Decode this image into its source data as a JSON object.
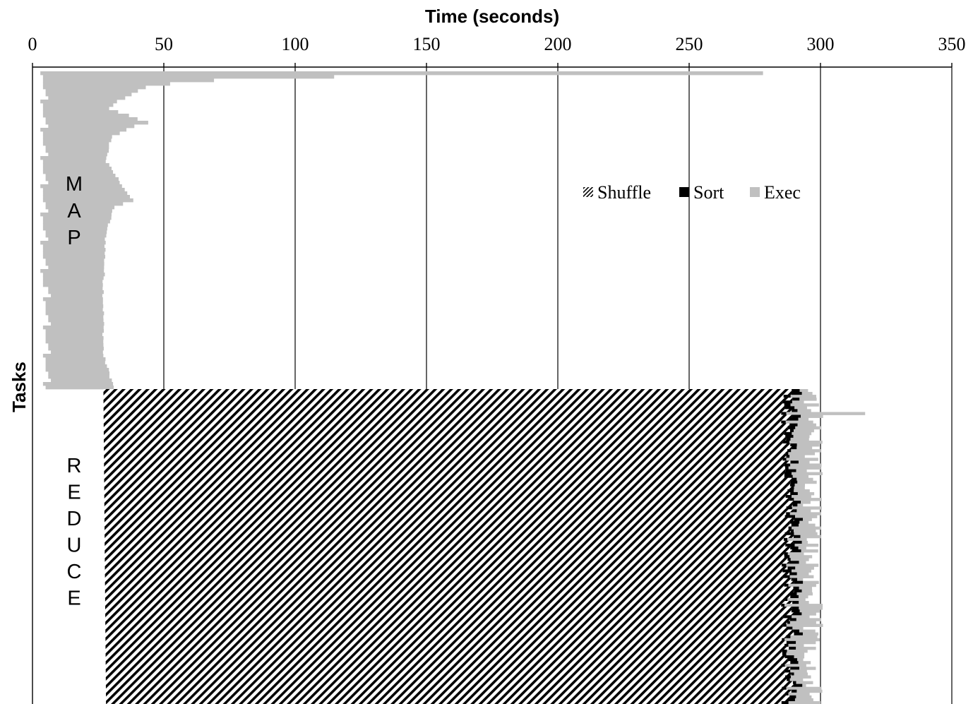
{
  "chart_data": {
    "type": "bar",
    "orientation": "horizontal-timeline",
    "xlabel": "Time (seconds)",
    "ylabel": "Tasks",
    "xlim": [
      0,
      350
    ],
    "x_ticks": [
      0,
      50,
      100,
      150,
      200,
      250,
      300,
      350
    ],
    "x_axis_position": "top",
    "grid": "vertical lines at each major tick",
    "legend": {
      "placement": "upper-right inside plot",
      "entries": [
        {
          "name": "Shuffle",
          "style": "hatched",
          "color": "#000000"
        },
        {
          "name": "Sort",
          "style": "solid",
          "color": "#000000"
        },
        {
          "name": "Exec",
          "style": "solid",
          "color": "#c0c0c0"
        }
      ]
    },
    "phase_labels": {
      "map": [
        "M",
        "A",
        "P"
      ],
      "reduce": [
        "R",
        "E",
        "D",
        "U",
        "C",
        "E"
      ]
    },
    "map_phase": {
      "task_count": 90,
      "exec_start": [
        3,
        4,
        4,
        4,
        4,
        5,
        5,
        6
      ],
      "exec_end_samples": [
        {
          "task": 0,
          "end": 278
        },
        {
          "task": 1,
          "end": 115
        },
        {
          "task": 2,
          "end": 69
        },
        {
          "task": 3,
          "end": 52
        },
        {
          "task": 4,
          "end": 43
        },
        {
          "task": 5,
          "end": 40
        },
        {
          "task": 6,
          "end": 38
        },
        {
          "task": 8,
          "end": 32
        },
        {
          "task": 10,
          "end": 29
        },
        {
          "task": 14,
          "end": 44
        },
        {
          "task": 15,
          "end": 39
        },
        {
          "task": 18,
          "end": 30
        },
        {
          "task": 25,
          "end": 28
        },
        {
          "task": 36,
          "end": 38
        },
        {
          "task": 38,
          "end": 31
        },
        {
          "task": 45,
          "end": 28
        },
        {
          "task": 60,
          "end": 27
        },
        {
          "task": 80,
          "end": 27
        },
        {
          "task": 89,
          "end": 31
        }
      ]
    },
    "reduce_phase": {
      "task_count": 110,
      "shuffle_start": [
        27,
        28
      ],
      "shuffle_end": [
        285,
        290
      ],
      "sort_duration": [
        1,
        4
      ],
      "exec_end": [
        293,
        301
      ],
      "exec_end_outlier": {
        "task": 8,
        "end": 317
      }
    }
  }
}
